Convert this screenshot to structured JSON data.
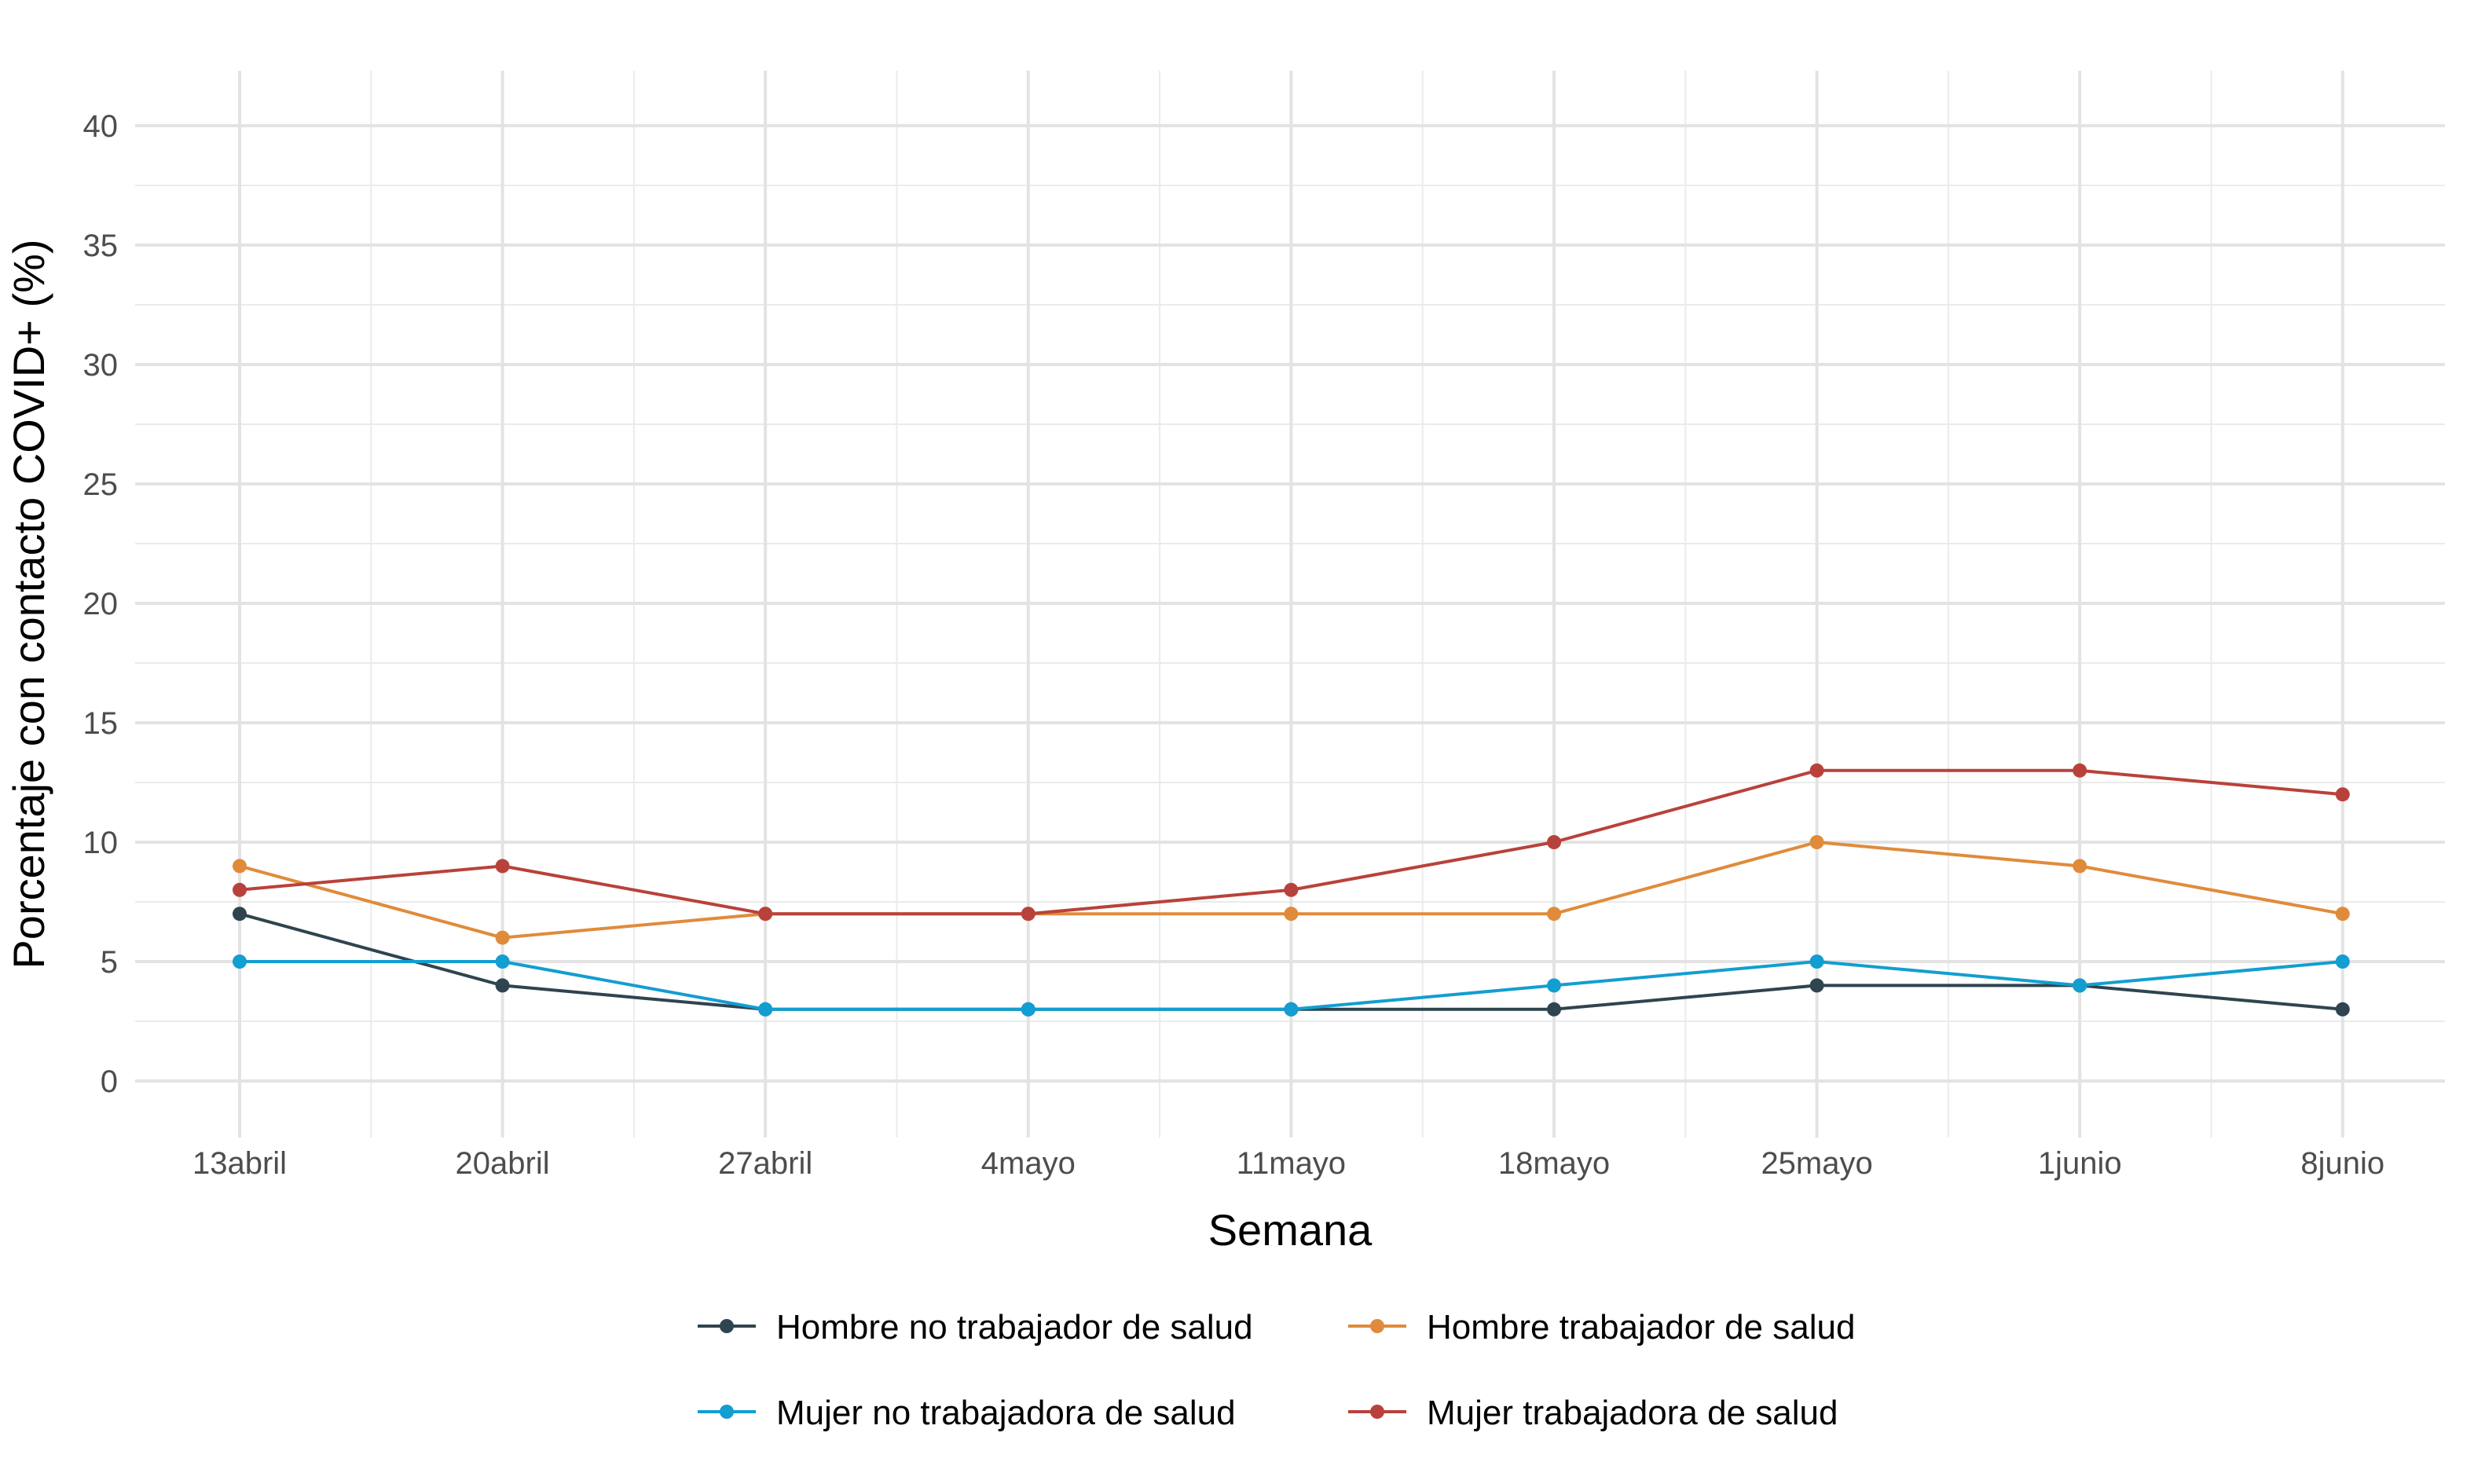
{
  "chart_data": {
    "type": "line",
    "title": "",
    "xlabel": "Semana",
    "ylabel": "Porcentaje con contacto COVID+ (%)",
    "categories": [
      "13abril",
      "20abril",
      "27abril",
      "4mayo",
      "11mayo",
      "18mayo",
      "25mayo",
      "1junio",
      "8junio"
    ],
    "ylim": [
      0,
      40
    ],
    "yticks": [
      0,
      5,
      10,
      15,
      20,
      25,
      30,
      35,
      40
    ],
    "ytick_labels": [
      "0",
      "5",
      "10",
      "15",
      "20",
      "25",
      "30",
      "35",
      "40"
    ],
    "grid": true,
    "legend_position": "bottom",
    "series": [
      {
        "name": "Hombre no trabajador de salud",
        "color": "#2f444f",
        "values": [
          7,
          4,
          3,
          3,
          3,
          3,
          4,
          4,
          3
        ]
      },
      {
        "name": "Hombre trabajador de salud",
        "color": "#e08b3b",
        "values": [
          9,
          6,
          7,
          7,
          7,
          7,
          10,
          9,
          7
        ]
      },
      {
        "name": "Mujer no trabajadora de salud",
        "color": "#129ed1",
        "values": [
          5,
          5,
          3,
          3,
          3,
          4,
          5,
          4,
          5
        ]
      },
      {
        "name": "Mujer trabajadora de salud",
        "color": "#b8423b",
        "values": [
          8,
          9,
          7,
          7,
          8,
          10,
          13,
          13,
          12
        ]
      }
    ]
  }
}
